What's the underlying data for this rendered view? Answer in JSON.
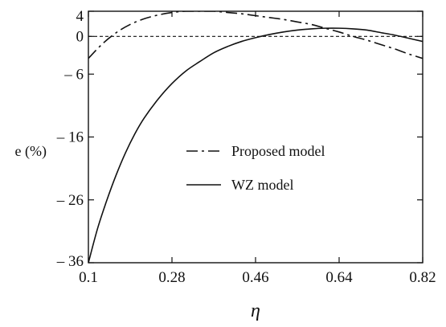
{
  "chart_data": {
    "type": "line",
    "xlabel": "η",
    "ylabel": "e (%)",
    "xlim": [
      0.1,
      0.82
    ],
    "ylim": [
      -36,
      4
    ],
    "xticks": [
      0.1,
      0.28,
      0.46,
      0.64,
      0.82
    ],
    "xtick_labels": [
      "0.1",
      "0.28",
      "0.46",
      "0.64",
      "0.82"
    ],
    "yticks": [
      4,
      0,
      -6,
      -16,
      -26,
      -36
    ],
    "ytick_labels": [
      "4",
      "0",
      "– 6",
      "– 16",
      "– 26",
      "– 36"
    ],
    "grid": false,
    "legend_position": "center",
    "reference_line": {
      "y": 0,
      "style": "dashed"
    },
    "series": [
      {
        "name": "Proposed model",
        "style": "dash-dot",
        "x": [
          0.1,
          0.13,
          0.16,
          0.19,
          0.22,
          0.25,
          0.28,
          0.31,
          0.34,
          0.37,
          0.4,
          0.43,
          0.46,
          0.49,
          0.52,
          0.55,
          0.58,
          0.61,
          0.64,
          0.67,
          0.7,
          0.73,
          0.76,
          0.79,
          0.82
        ],
        "values": [
          -3.5,
          -1.2,
          0.6,
          1.9,
          2.8,
          3.4,
          3.8,
          4.0,
          4.0,
          4.0,
          3.8,
          3.6,
          3.3,
          3.0,
          2.7,
          2.3,
          1.9,
          1.3,
          0.7,
          0.0,
          -0.6,
          -1.3,
          -2.0,
          -2.8,
          -3.5
        ]
      },
      {
        "name": "WZ model",
        "style": "solid",
        "x": [
          0.1,
          0.12,
          0.14,
          0.16,
          0.18,
          0.2,
          0.22,
          0.25,
          0.28,
          0.31,
          0.34,
          0.37,
          0.4,
          0.43,
          0.46,
          0.49,
          0.52,
          0.55,
          0.58,
          0.61,
          0.64,
          0.67,
          0.7,
          0.73,
          0.76,
          0.79,
          0.82
        ],
        "values": [
          -36,
          -30.5,
          -26,
          -22,
          -18.5,
          -15.5,
          -13,
          -10,
          -7.5,
          -5.5,
          -4,
          -2.6,
          -1.6,
          -0.8,
          -0.2,
          0.3,
          0.7,
          1.0,
          1.2,
          1.3,
          1.3,
          1.2,
          1.0,
          0.6,
          0.2,
          -0.3,
          -0.8
        ]
      }
    ],
    "legend": [
      {
        "label": "Proposed model",
        "style": "dash-dot"
      },
      {
        "label": "WZ model",
        "style": "solid"
      }
    ]
  }
}
